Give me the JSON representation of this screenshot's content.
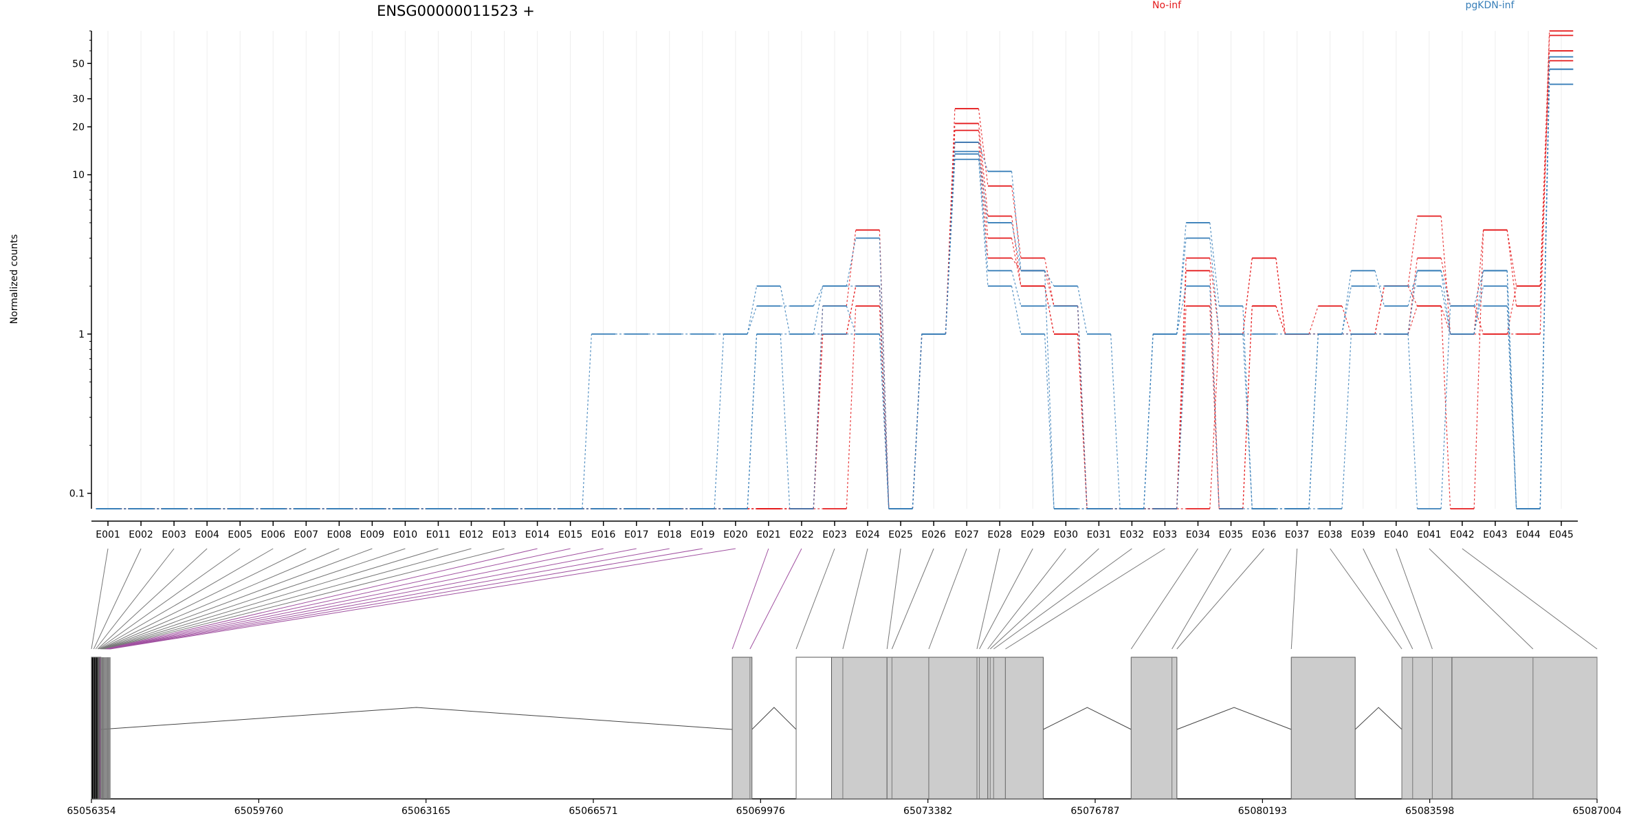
{
  "chart_data": {
    "type": "line",
    "title": "ENSG00000011523 +",
    "ylabel": "Normalized counts",
    "yscale": "log",
    "ylim": [
      0.08,
      80
    ],
    "yticks": [
      {
        "value": 0.1,
        "label": "0.1"
      },
      {
        "value": 1,
        "label": "1"
      },
      {
        "value": 10,
        "label": "10"
      },
      {
        "value": 20,
        "label": "20"
      },
      {
        "value": 30,
        "label": "30"
      },
      {
        "value": 50,
        "label": "50"
      }
    ],
    "categories": [
      "E001",
      "E002",
      "E003",
      "E004",
      "E005",
      "E006",
      "E007",
      "E008",
      "E009",
      "E010",
      "E011",
      "E012",
      "E013",
      "E014",
      "E015",
      "E016",
      "E017",
      "E018",
      "E019",
      "E020",
      "E021",
      "E022",
      "E023",
      "E024",
      "E025",
      "E026",
      "E027",
      "E028",
      "E029",
      "E030",
      "E031",
      "E032",
      "E033",
      "E034",
      "E035",
      "E036",
      "E037",
      "E038",
      "E039",
      "E040",
      "E041",
      "E042",
      "E043",
      "E044",
      "E045"
    ],
    "legend": [
      {
        "name": "No-inf",
        "color": "#e41a1c"
      },
      {
        "name": "pgKDN-inf",
        "color": "#377eb8"
      }
    ],
    "grid": true,
    "series": [
      {
        "group": "No-inf",
        "color": "#e41a1c",
        "values": [
          0.08,
          0.08,
          0.08,
          0.08,
          0.08,
          0.08,
          0.08,
          0.08,
          0.08,
          0.08,
          0.08,
          0.08,
          0.08,
          0.08,
          0.08,
          0.08,
          0.08,
          0.08,
          0.08,
          0.08,
          0.08,
          0.08,
          1.5,
          4.5,
          0.08,
          1,
          26,
          8.5,
          3,
          1.5,
          0.08,
          0.08,
          0.08,
          3,
          1,
          3,
          1,
          1.5,
          1,
          2,
          5.5,
          1,
          4.5,
          2,
          80
        ]
      },
      {
        "group": "No-inf",
        "color": "#e41a1c",
        "values": [
          0.08,
          0.08,
          0.08,
          0.08,
          0.08,
          0.08,
          0.08,
          0.08,
          0.08,
          0.08,
          0.08,
          0.08,
          0.08,
          0.08,
          0.08,
          0.08,
          0.08,
          0.08,
          0.08,
          0.08,
          0.08,
          0.08,
          1,
          2,
          0.08,
          1,
          21,
          5.5,
          2,
          1,
          0.08,
          0.08,
          0.08,
          1.5,
          0.08,
          1.5,
          1,
          1,
          1,
          1,
          3,
          1.5,
          1,
          1,
          75
        ]
      },
      {
        "group": "No-inf",
        "color": "#e41a1c",
        "values": [
          0.08,
          0.08,
          0.08,
          0.08,
          0.08,
          0.08,
          0.08,
          0.08,
          0.08,
          0.08,
          0.08,
          0.08,
          0.08,
          0.08,
          0.08,
          0.08,
          0.08,
          0.08,
          0.08,
          0.08,
          0.08,
          0.08,
          0.08,
          1.5,
          0.08,
          1,
          19,
          4,
          2,
          1,
          0.08,
          0.08,
          0.08,
          0.08,
          1,
          3,
          1,
          1,
          1,
          1,
          1.5,
          0.08,
          4.5,
          1.5,
          60
        ]
      },
      {
        "group": "No-inf",
        "color": "#e41a1c",
        "values": [
          0.08,
          0.08,
          0.08,
          0.08,
          0.08,
          0.08,
          0.08,
          0.08,
          0.08,
          0.08,
          0.08,
          0.08,
          0.08,
          0.08,
          0.08,
          0.08,
          0.08,
          0.08,
          0.08,
          0.08,
          0.08,
          0.08,
          1,
          2,
          0.08,
          1,
          16,
          3,
          2.5,
          1.5,
          0.08,
          0.08,
          0.08,
          2.5,
          0.08,
          1.5,
          1,
          1,
          1,
          2,
          1.5,
          1,
          1,
          2,
          52
        ]
      },
      {
        "group": "pgKDN-inf",
        "color": "#377eb8",
        "values": [
          0.08,
          0.08,
          0.08,
          0.08,
          0.08,
          0.08,
          0.08,
          0.08,
          0.08,
          0.08,
          0.08,
          0.08,
          0.08,
          0.08,
          0.08,
          1,
          1,
          1,
          1,
          1,
          2,
          1,
          2,
          4,
          0.08,
          1,
          16,
          10.5,
          2.5,
          2,
          1,
          0.08,
          1,
          5,
          1.5,
          0.08,
          0.08,
          1,
          2.5,
          1.5,
          2.5,
          1,
          2.5,
          0.08,
          46
        ]
      },
      {
        "group": "pgKDN-inf",
        "color": "#377eb8",
        "values": [
          0.08,
          0.08,
          0.08,
          0.08,
          0.08,
          0.08,
          0.08,
          0.08,
          0.08,
          0.08,
          0.08,
          0.08,
          0.08,
          0.08,
          0.08,
          0.08,
          0.08,
          0.08,
          0.08,
          1,
          1.5,
          1.5,
          2,
          2,
          0.08,
          1,
          14,
          5,
          2.5,
          0.08,
          0.08,
          0.08,
          1,
          4,
          1,
          1,
          1,
          1,
          2,
          2,
          2,
          1,
          2,
          0.08,
          46
        ]
      },
      {
        "group": "pgKDN-inf",
        "color": "#377eb8",
        "values": [
          0.08,
          0.08,
          0.08,
          0.08,
          0.08,
          0.08,
          0.08,
          0.08,
          0.08,
          0.08,
          0.08,
          0.08,
          0.08,
          0.08,
          0.08,
          0.08,
          0.08,
          0.08,
          0.08,
          0.08,
          1,
          0.08,
          1.5,
          1,
          0.08,
          1,
          13.5,
          2.5,
          1.5,
          1.5,
          0.08,
          0.08,
          1,
          2,
          0.08,
          0.08,
          0.08,
          0.08,
          1,
          1,
          0.08,
          1.5,
          1.5,
          0.08,
          37
        ]
      },
      {
        "group": "pgKDN-inf",
        "color": "#377eb8",
        "values": [
          0.08,
          0.08,
          0.08,
          0.08,
          0.08,
          0.08,
          0.08,
          0.08,
          0.08,
          0.08,
          0.08,
          0.08,
          0.08,
          0.08,
          0.08,
          0.08,
          0.08,
          0.08,
          0.08,
          0.08,
          1,
          1,
          1,
          1,
          0.08,
          1,
          12.5,
          2,
          1,
          0.08,
          0.08,
          0.08,
          0.08,
          1,
          1,
          0.08,
          0.08,
          1,
          1,
          1,
          2.5,
          1.5,
          2.5,
          0.08,
          55
        ]
      }
    ],
    "genomic_axis": {
      "start": 65056354,
      "end": 65087004,
      "ticks": [
        {
          "value": 65056354,
          "label": "65056354"
        },
        {
          "value": 65059760,
          "label": "65059760"
        },
        {
          "value": 65063165,
          "label": "65063165"
        },
        {
          "value": 65066571,
          "label": "65066571"
        },
        {
          "value": 65069976,
          "label": "65069976"
        },
        {
          "value": 65073382,
          "label": "65073382"
        },
        {
          "value": 65076787,
          "label": "65076787"
        },
        {
          "value": 65080193,
          "label": "65080193"
        },
        {
          "value": 65083598,
          "label": "65083598"
        },
        {
          "value": 65087004,
          "label": "65087004"
        }
      ],
      "exon_blocks": [
        {
          "start": 65056354,
          "end": 65056520,
          "fill": "#000000"
        },
        {
          "start": 65056520,
          "end": 65056540,
          "fill": "#c000c0"
        },
        {
          "start": 65069400,
          "end": 65069800,
          "fill": "#cccccc"
        },
        {
          "start": 65070700,
          "end": 65071420,
          "fill": "#ffffff"
        },
        {
          "start": 65071420,
          "end": 65072550,
          "fill": "#cccccc"
        },
        {
          "start": 65072550,
          "end": 65073400,
          "fill": "#cccccc"
        },
        {
          "start": 65073400,
          "end": 65074380,
          "fill": "#cccccc"
        },
        {
          "start": 65074380,
          "end": 65074600,
          "fill": "#cccccc"
        },
        {
          "start": 65074600,
          "end": 65074960,
          "fill": "#cccccc"
        },
        {
          "start": 65074960,
          "end": 65075730,
          "fill": "#cccccc"
        },
        {
          "start": 65077520,
          "end": 65078450,
          "fill": "#cccccc"
        },
        {
          "start": 65080780,
          "end": 65082080,
          "fill": "#cccccc"
        },
        {
          "start": 65083030,
          "end": 65084050,
          "fill": "#cccccc"
        },
        {
          "start": 65084050,
          "end": 65087004,
          "fill": "#cccccc"
        }
      ],
      "exon_boundaries": [
        65056354,
        65056400,
        65056440,
        65056480,
        65056500,
        65056520,
        65056540,
        65056555,
        65056570,
        65056585,
        65056600,
        65056615,
        65056630,
        65056645,
        65056660,
        65056675,
        65056690,
        65056705,
        65056720,
        65056735,
        65069400,
        65069760,
        65070700,
        65071650,
        65072550,
        65072650,
        65073400,
        65074380,
        65074430,
        65074600,
        65074650,
        65074720,
        65074960,
        65077520,
        65078350,
        65078450,
        65080780,
        65083030,
        65083250,
        65083650,
        65085700,
        65087004
      ],
      "introns": [
        {
          "start": 65056540,
          "end": 65069400
        },
        {
          "start": 65069800,
          "end": 65070700
        },
        {
          "start": 65075730,
          "end": 65077520
        },
        {
          "start": 65078450,
          "end": 65080780
        },
        {
          "start": 65082080,
          "end": 65083030
        }
      ]
    }
  }
}
